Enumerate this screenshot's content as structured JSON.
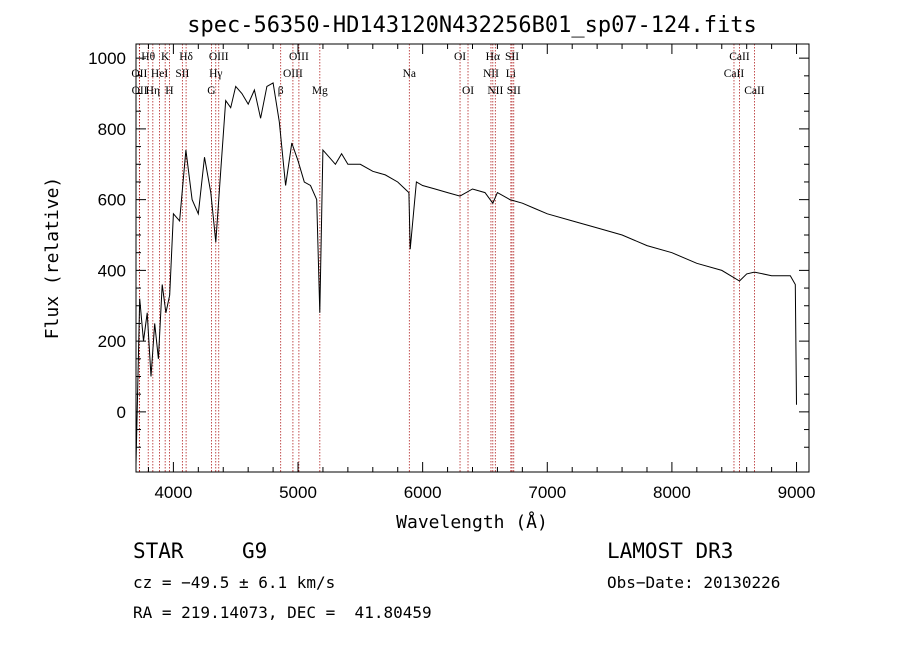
{
  "chart_data": {
    "type": "line",
    "title": "spec-56350-HD143120N432256B01_sp07-124.fits",
    "xlabel": "Wavelength (Å)",
    "ylabel": "Flux (relative)",
    "xlim": [
      3700,
      9100
    ],
    "ylim": [
      -170,
      1040
    ],
    "xticks": [
      4000,
      5000,
      6000,
      7000,
      8000,
      9000
    ],
    "yticks": [
      0,
      200,
      400,
      600,
      800,
      1000
    ],
    "series": [
      {
        "name": "spectrum",
        "x": [
          3700,
          3730,
          3760,
          3790,
          3820,
          3850,
          3880,
          3910,
          3940,
          3970,
          4000,
          4050,
          4100,
          4150,
          4200,
          4250,
          4300,
          4340,
          4380,
          4420,
          4460,
          4500,
          4550,
          4600,
          4650,
          4700,
          4750,
          4800,
          4850,
          4900,
          4950,
          5000,
          5050,
          5100,
          5150,
          5175,
          5200,
          5250,
          5300,
          5350,
          5400,
          5500,
          5600,
          5700,
          5800,
          5890,
          5900,
          5950,
          6000,
          6100,
          6200,
          6300,
          6400,
          6500,
          6563,
          6600,
          6700,
          6800,
          6900,
          7000,
          7200,
          7400,
          7600,
          7800,
          8000,
          8200,
          8400,
          8542,
          8600,
          8662,
          8800,
          8950,
          8990,
          9000
        ],
        "y": [
          -150,
          320,
          200,
          280,
          100,
          250,
          150,
          360,
          280,
          330,
          560,
          540,
          740,
          600,
          560,
          720,
          620,
          480,
          680,
          880,
          860,
          920,
          900,
          870,
          910,
          830,
          920,
          930,
          820,
          640,
          760,
          710,
          650,
          640,
          600,
          280,
          740,
          720,
          700,
          730,
          700,
          700,
          680,
          670,
          650,
          620,
          460,
          650,
          640,
          630,
          620,
          610,
          630,
          620,
          590,
          620,
          600,
          590,
          575,
          560,
          540,
          520,
          500,
          470,
          450,
          420,
          400,
          370,
          390,
          395,
          385,
          385,
          360,
          20
        ]
      }
    ],
    "lines_upper": [
      {
        "label": "Hθ",
        "x": 3798
      },
      {
        "label": "K",
        "x": 3934
      },
      {
        "label": "Hδ",
        "x": 4102
      },
      {
        "label": "OIII",
        "x": 4364
      },
      {
        "label": "OIII",
        "x": 5007
      },
      {
        "label": "OI",
        "x": 6300
      },
      {
        "label": "Hα",
        "x": 6563
      },
      {
        "label": "SII",
        "x": 6717
      },
      {
        "label": "CaII",
        "x": 8542
      }
    ],
    "lines_middle": [
      {
        "label": "OII",
        "x": 3727
      },
      {
        "label": "HeI",
        "x": 3889
      },
      {
        "label": "SII",
        "x": 4072
      },
      {
        "label": "Hγ",
        "x": 4340
      },
      {
        "label": "OIII",
        "x": 4959
      },
      {
        "label": "Na",
        "x": 5893
      },
      {
        "label": "NII",
        "x": 6548
      },
      {
        "label": "Li",
        "x": 6708
      },
      {
        "label": "CaII",
        "x": 8498
      }
    ],
    "lines_lower": [
      {
        "label": "OII",
        "x": 3729
      },
      {
        "label": "Hη",
        "x": 3835
      },
      {
        "label": "H",
        "x": 3968
      },
      {
        "label": "G",
        "x": 4305
      },
      {
        "label": "β",
        "x": 4861
      },
      {
        "label": "Mg",
        "x": 5175
      },
      {
        "label": "OI",
        "x": 6364
      },
      {
        "label": "NII",
        "x": 6583
      },
      {
        "label": "SII",
        "x": 6731
      },
      {
        "label": "CaII",
        "x": 8662
      }
    ]
  },
  "info": {
    "class": "STAR",
    "subclass": "G9",
    "survey": "LAMOST DR3",
    "cz": "cz = −49.5 ± 6.1 km/s",
    "obs_date": "Obs−Date: 20130226",
    "radec": "RA = 219.14073, DEC =  41.80459"
  }
}
